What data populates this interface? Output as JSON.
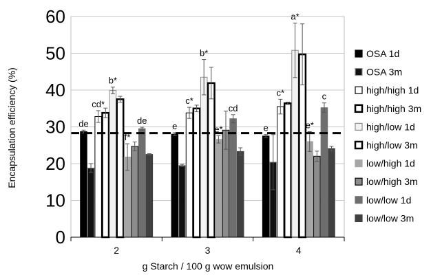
{
  "chart_data": {
    "type": "bar",
    "title": "",
    "xlabel": "g Starch / 100 g wow emulsion",
    "ylabel": "Encapsulation efficiency (%)",
    "ylim": [
      0,
      60
    ],
    "yticks": [
      0,
      10,
      20,
      30,
      40,
      50,
      60
    ],
    "grid": "horizontal",
    "legend_position": "right",
    "reference_line": {
      "value": 28.3,
      "style": "dashed"
    },
    "categories": [
      "2",
      "3",
      "4"
    ],
    "series": [
      {
        "name": "OSA 1d",
        "fill": "#000000",
        "edge": "#000000",
        "values": [
          28.7,
          28.0,
          27.5
        ],
        "errors": [
          0.4,
          0.4,
          0.4
        ]
      },
      {
        "name": "OSA 3m",
        "fill": "#111111",
        "edge": "#8c8c8c",
        "values": [
          18.8,
          19.5,
          20.4
        ],
        "errors": [
          1.2,
          0.3,
          7.5
        ]
      },
      {
        "name": "high/high 1d",
        "fill": "#ffffff",
        "edge": "#000000",
        "values": [
          32.8,
          33.8,
          35.5
        ],
        "errors": [
          1.6,
          1.5,
          2.0
        ]
      },
      {
        "name": "high/high 3m",
        "fill": "#ffffff",
        "edge": "#000000",
        "edge_width": 2.5,
        "values": [
          33.8,
          35.0,
          36.4
        ],
        "errors": [
          1.3,
          0.9,
          0.3
        ]
      },
      {
        "name": "high/low 1d",
        "fill": "#f2f2f2",
        "edge": "#8c8c8c",
        "values": [
          39.9,
          43.5,
          50.8
        ],
        "errors": [
          0.9,
          4.8,
          7.4
        ]
      },
      {
        "name": "high/low 3m",
        "fill": "#ffffff",
        "edge": "#000000",
        "edge_width": 2.5,
        "values": [
          37.5,
          41.9,
          49.7
        ],
        "errors": [
          0.8,
          4.3,
          8.3
        ]
      },
      {
        "name": "low/high 1d",
        "fill": "#a6a6a6",
        "edge": "#a6a6a6",
        "values": [
          21.8,
          26.6,
          26.0
        ],
        "errors": [
          3.6,
          1.0,
          2.7
        ]
      },
      {
        "name": "low/high 3m",
        "fill": "#8c8c8c",
        "edge": "#000000",
        "values": [
          24.7,
          29.1,
          22.0
        ],
        "errors": [
          1.2,
          5.2,
          1.4
        ]
      },
      {
        "name": "low/low 1d",
        "fill": "#6e6e6e",
        "edge": "#6e6e6e",
        "values": [
          29.5,
          32.2,
          35.2
        ],
        "errors": [
          0.4,
          1.1,
          1.3
        ]
      },
      {
        "name": "low/low 3m",
        "fill": "#404040",
        "edge": "#404040",
        "values": [
          22.5,
          23.3,
          24.1
        ],
        "errors": [
          0.2,
          1.0,
          0.6
        ]
      }
    ],
    "annotations": [
      {
        "category": 0,
        "series": 0,
        "text": "de"
      },
      {
        "category": 0,
        "series": 2,
        "text": "cd*"
      },
      {
        "category": 0,
        "series": 4,
        "text": "b*"
      },
      {
        "category": 0,
        "series": 6,
        "text": "f*"
      },
      {
        "category": 0,
        "series": 8,
        "text": "de"
      },
      {
        "category": 1,
        "series": 0,
        "text": "e"
      },
      {
        "category": 1,
        "series": 2,
        "text": "c*"
      },
      {
        "category": 1,
        "series": 4,
        "text": "b*"
      },
      {
        "category": 1,
        "series": 6,
        "text": "e*"
      },
      {
        "category": 1,
        "series": 8,
        "text": "cd"
      },
      {
        "category": 2,
        "series": 0,
        "text": "e"
      },
      {
        "category": 2,
        "series": 2,
        "text": "c*"
      },
      {
        "category": 2,
        "series": 4,
        "text": "a*"
      },
      {
        "category": 2,
        "series": 6,
        "text": "e*"
      },
      {
        "category": 2,
        "series": 8,
        "text": "c"
      }
    ]
  }
}
